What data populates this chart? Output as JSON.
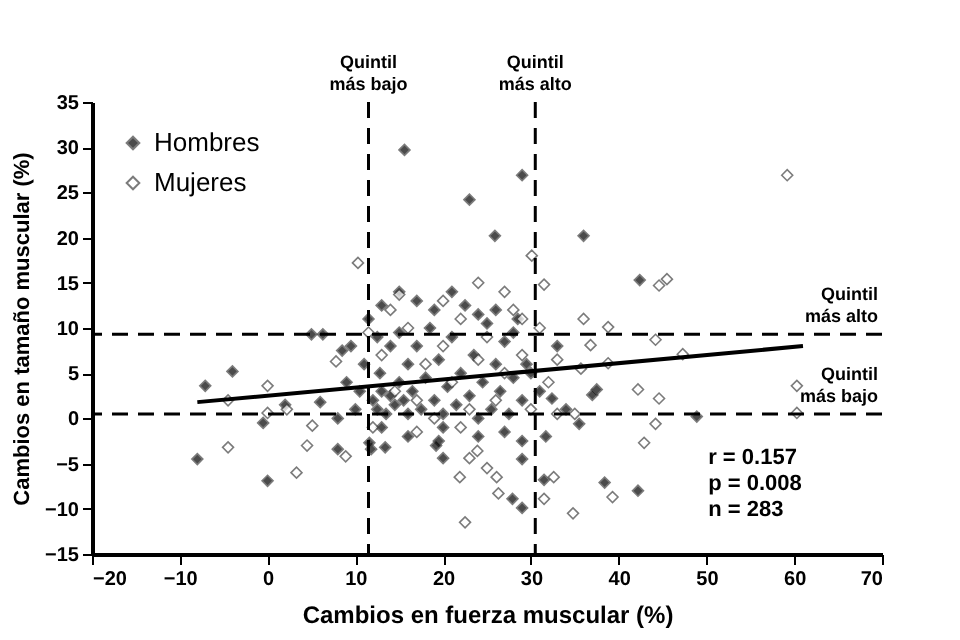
{
  "chart_data": {
    "type": "scatter",
    "xlabel": "Cambios en fuerza muscular (%)",
    "ylabel": "Cambios en tamaño muscular (%)",
    "xlim": [
      -20,
      70
    ],
    "xticks": [
      -20,
      -10,
      0,
      10,
      20,
      30,
      40,
      50,
      60,
      70
    ],
    "ylim": [
      -15,
      35
    ],
    "yticks": [
      -15,
      -10,
      -5,
      0,
      5,
      10,
      15,
      20,
      25,
      30,
      35
    ],
    "grid": false,
    "legend": "top left",
    "marker": "diamond",
    "series": [
      {
        "name": "Hombres",
        "color": "#000000",
        "x": [
          12,
          12.5,
          13,
          13.5,
          14,
          12.8,
          14.5,
          15,
          15.5,
          16,
          16,
          16.5,
          17,
          17.5,
          18,
          18.5,
          19,
          19.5,
          20,
          20.5,
          21,
          21.5,
          22,
          22.5,
          23,
          23.5,
          24,
          24.5,
          25,
          25.5,
          26,
          26.5,
          27,
          27.5,
          28,
          28.5,
          29,
          29.5,
          11,
          10.5,
          10,
          9,
          8,
          9.5,
          8.5,
          11.5,
          13,
          14,
          15,
          17,
          19,
          21,
          24,
          26,
          28,
          30,
          31,
          33,
          13,
          16,
          20,
          24,
          27,
          19.5,
          11.8,
          15,
          5,
          12.5,
          2,
          6,
          -0.5,
          34,
          15.6,
          23,
          25.9,
          29,
          36,
          42.4,
          -8,
          -7.1,
          -4,
          0,
          8,
          11.6,
          13.4,
          19.2,
          20,
          27.9,
          29,
          29,
          29,
          31.5,
          31.7,
          38.4,
          42.2,
          48.9,
          37.5,
          37,
          32.4,
          35.5,
          6.3
        ],
        "values": [
          2,
          1,
          3,
          0.5,
          2.5,
          5,
          1.5,
          4,
          2,
          0.5,
          6,
          3,
          8,
          1,
          4.5,
          10,
          2,
          6.5,
          0.5,
          3.5,
          9,
          1.5,
          5,
          12.5,
          2.5,
          7,
          0,
          4,
          10.5,
          1,
          6,
          3,
          8.5,
          0.5,
          4.5,
          11,
          2,
          6,
          6,
          3,
          1,
          4,
          0,
          8,
          7.5,
          11,
          12.5,
          8,
          14,
          13,
          12,
          14,
          11.5,
          12,
          9.5,
          5,
          3,
          8,
          -1,
          -2,
          -1,
          -2,
          -1.5,
          -2.5,
          -3.4,
          9.5,
          9.3,
          9,
          1.5,
          1.8,
          -0.5,
          1,
          29.7,
          24.2,
          20.2,
          26.9,
          20.2,
          15.3,
          -4.5,
          3.6,
          5.2,
          -6.9,
          -3.4,
          -2.7,
          -3.2,
          -3,
          -4.4,
          -8.9,
          -9.9,
          -4.5,
          -2.5,
          -6.8,
          -2,
          -7.1,
          -8,
          0.2,
          3.2,
          2.6,
          2.2,
          -0.6,
          9.3
        ]
      },
      {
        "name": "Mujeres",
        "color": "#ffffff",
        "x": [
          59.2,
          44.6,
          45.5,
          30.1,
          31.5,
          38.8,
          10.3,
          15,
          -4.5,
          -4.5,
          0,
          0,
          2.2,
          3.3,
          4.5,
          5.1,
          7.8,
          8.9,
          22.5,
          21.9,
          23,
          23.9,
          25,
          26.1,
          26.3,
          31.5,
          32.6,
          34.8,
          39.3,
          42.9,
          44.2,
          60.3,
          60.3,
          42.2,
          44.6,
          47.3,
          44.2,
          38.8,
          35.7,
          36.8,
          11.5,
          13,
          14.5,
          16,
          17,
          18,
          19,
          20,
          21,
          22,
          23,
          24,
          25,
          26,
          27,
          28,
          29,
          30,
          31,
          32,
          33,
          20,
          24,
          27,
          12,
          17,
          29,
          22,
          33,
          35,
          36,
          14
        ],
        "values": [
          26.9,
          14.7,
          15.4,
          18,
          14.8,
          10.1,
          17.2,
          13.7,
          -3.2,
          2,
          3.6,
          0.6,
          1,
          -6,
          -3,
          -0.8,
          6.3,
          -4.2,
          -11.5,
          -6.5,
          -4.4,
          -3.6,
          -5.5,
          -6.5,
          -8.3,
          -8.9,
          -6.5,
          -10.5,
          -8.7,
          -2.7,
          -0.6,
          0.6,
          3.6,
          3.2,
          2.2,
          7.1,
          8.7,
          6.1,
          5.5,
          8.1,
          9.5,
          7,
          3,
          10,
          2,
          6,
          0,
          8,
          4,
          11,
          1,
          6.5,
          9,
          2,
          5,
          12,
          7,
          1,
          10,
          4,
          0.5,
          13,
          15,
          14,
          -1,
          -1.5,
          11,
          -1,
          6.5,
          0.5,
          11,
          12
        ]
      },
      {
        "type": "line",
        "color": "#000000",
        "marker": "none",
        "x": [
          -8,
          61
        ],
        "values": [
          1.8,
          8
        ]
      }
    ],
    "ref_lines": [
      {
        "axis": "x",
        "value": 11.5,
        "label": "Quintil más bajo",
        "line_style": "dashed"
      },
      {
        "axis": "x",
        "value": 30.5,
        "label": "Quintil más alto",
        "line_style": "dashed"
      },
      {
        "axis": "y",
        "value": 9.3,
        "label": "Quintil más alto",
        "line_style": "dashed"
      },
      {
        "axis": "y",
        "value": 0.5,
        "label": "Quintil más bajo",
        "line_style": "dashed"
      }
    ],
    "annotations": [
      "r = 0.157",
      "p = 0.008",
      "n = 283"
    ]
  }
}
